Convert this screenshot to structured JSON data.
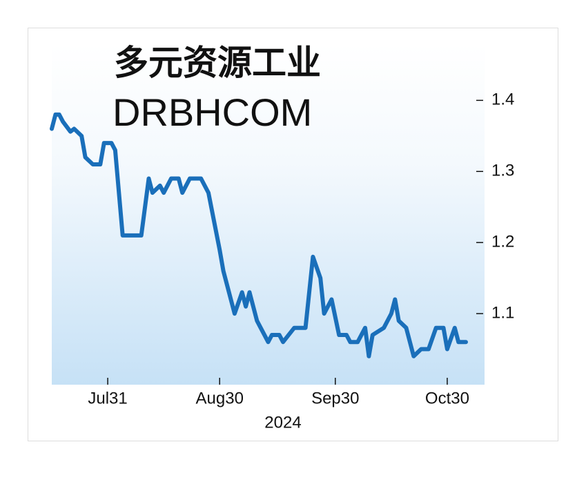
{
  "chart_data": {
    "type": "line",
    "title": "多元资源工业",
    "subtitle": "DRBHCOM",
    "xlabel": "2024",
    "x": [
      "2024-07-16",
      "2024-07-17",
      "2024-07-18",
      "2024-07-19",
      "2024-07-21",
      "2024-07-22",
      "2024-07-24",
      "2024-07-25",
      "2024-07-27",
      "2024-07-29",
      "2024-07-30",
      "2024-08-01",
      "2024-08-02",
      "2024-08-04",
      "2024-08-09",
      "2024-08-11",
      "2024-08-12",
      "2024-08-14",
      "2024-08-15",
      "2024-08-17",
      "2024-08-19",
      "2024-08-20",
      "2024-08-22",
      "2024-08-25",
      "2024-08-27",
      "2024-08-30",
      "2024-08-31",
      "2024-09-03",
      "2024-09-05",
      "2024-09-06",
      "2024-09-07",
      "2024-09-09",
      "2024-09-10",
      "2024-09-12",
      "2024-09-13",
      "2024-09-15",
      "2024-09-16",
      "2024-09-19",
      "2024-09-22",
      "2024-09-24",
      "2024-09-26",
      "2024-09-27",
      "2024-09-29",
      "2024-10-01",
      "2024-10-03",
      "2024-10-04",
      "2024-10-06",
      "2024-10-08",
      "2024-10-09",
      "2024-10-10",
      "2024-10-13",
      "2024-10-15",
      "2024-10-16",
      "2024-10-17",
      "2024-10-19",
      "2024-10-21",
      "2024-10-23",
      "2024-10-25",
      "2024-10-27",
      "2024-10-29",
      "2024-10-30",
      "2024-11-01",
      "2024-11-02",
      "2024-11-04"
    ],
    "series": [
      {
        "name": "DRBHCOM",
        "color": "#1a6fba",
        "values": [
          1.36,
          1.38,
          1.38,
          1.37,
          1.356,
          1.36,
          1.35,
          1.32,
          1.31,
          1.31,
          1.34,
          1.34,
          1.33,
          1.21,
          1.21,
          1.29,
          1.27,
          1.28,
          1.27,
          1.29,
          1.29,
          1.27,
          1.29,
          1.29,
          1.27,
          1.19,
          1.16,
          1.1,
          1.13,
          1.11,
          1.13,
          1.09,
          1.08,
          1.06,
          1.07,
          1.07,
          1.06,
          1.08,
          1.08,
          1.18,
          1.15,
          1.1,
          1.12,
          1.07,
          1.07,
          1.06,
          1.06,
          1.08,
          1.04,
          1.07,
          1.08,
          1.1,
          1.12,
          1.09,
          1.08,
          1.04,
          1.05,
          1.05,
          1.08,
          1.08,
          1.05,
          1.08,
          1.06,
          1.06
        ]
      }
    ],
    "xlim": [
      "2024-07-16",
      "2024-11-09"
    ],
    "xticks": [
      {
        "value": "2024-07-31",
        "label": "Jul31"
      },
      {
        "value": "2024-08-30",
        "label": "Aug30"
      },
      {
        "value": "2024-09-30",
        "label": "Sep30"
      },
      {
        "value": "2024-10-30",
        "label": "Oct30"
      }
    ],
    "ylim": [
      1.0,
      1.48
    ],
    "yticks": [
      1.1,
      1.2,
      1.3,
      1.4
    ]
  }
}
